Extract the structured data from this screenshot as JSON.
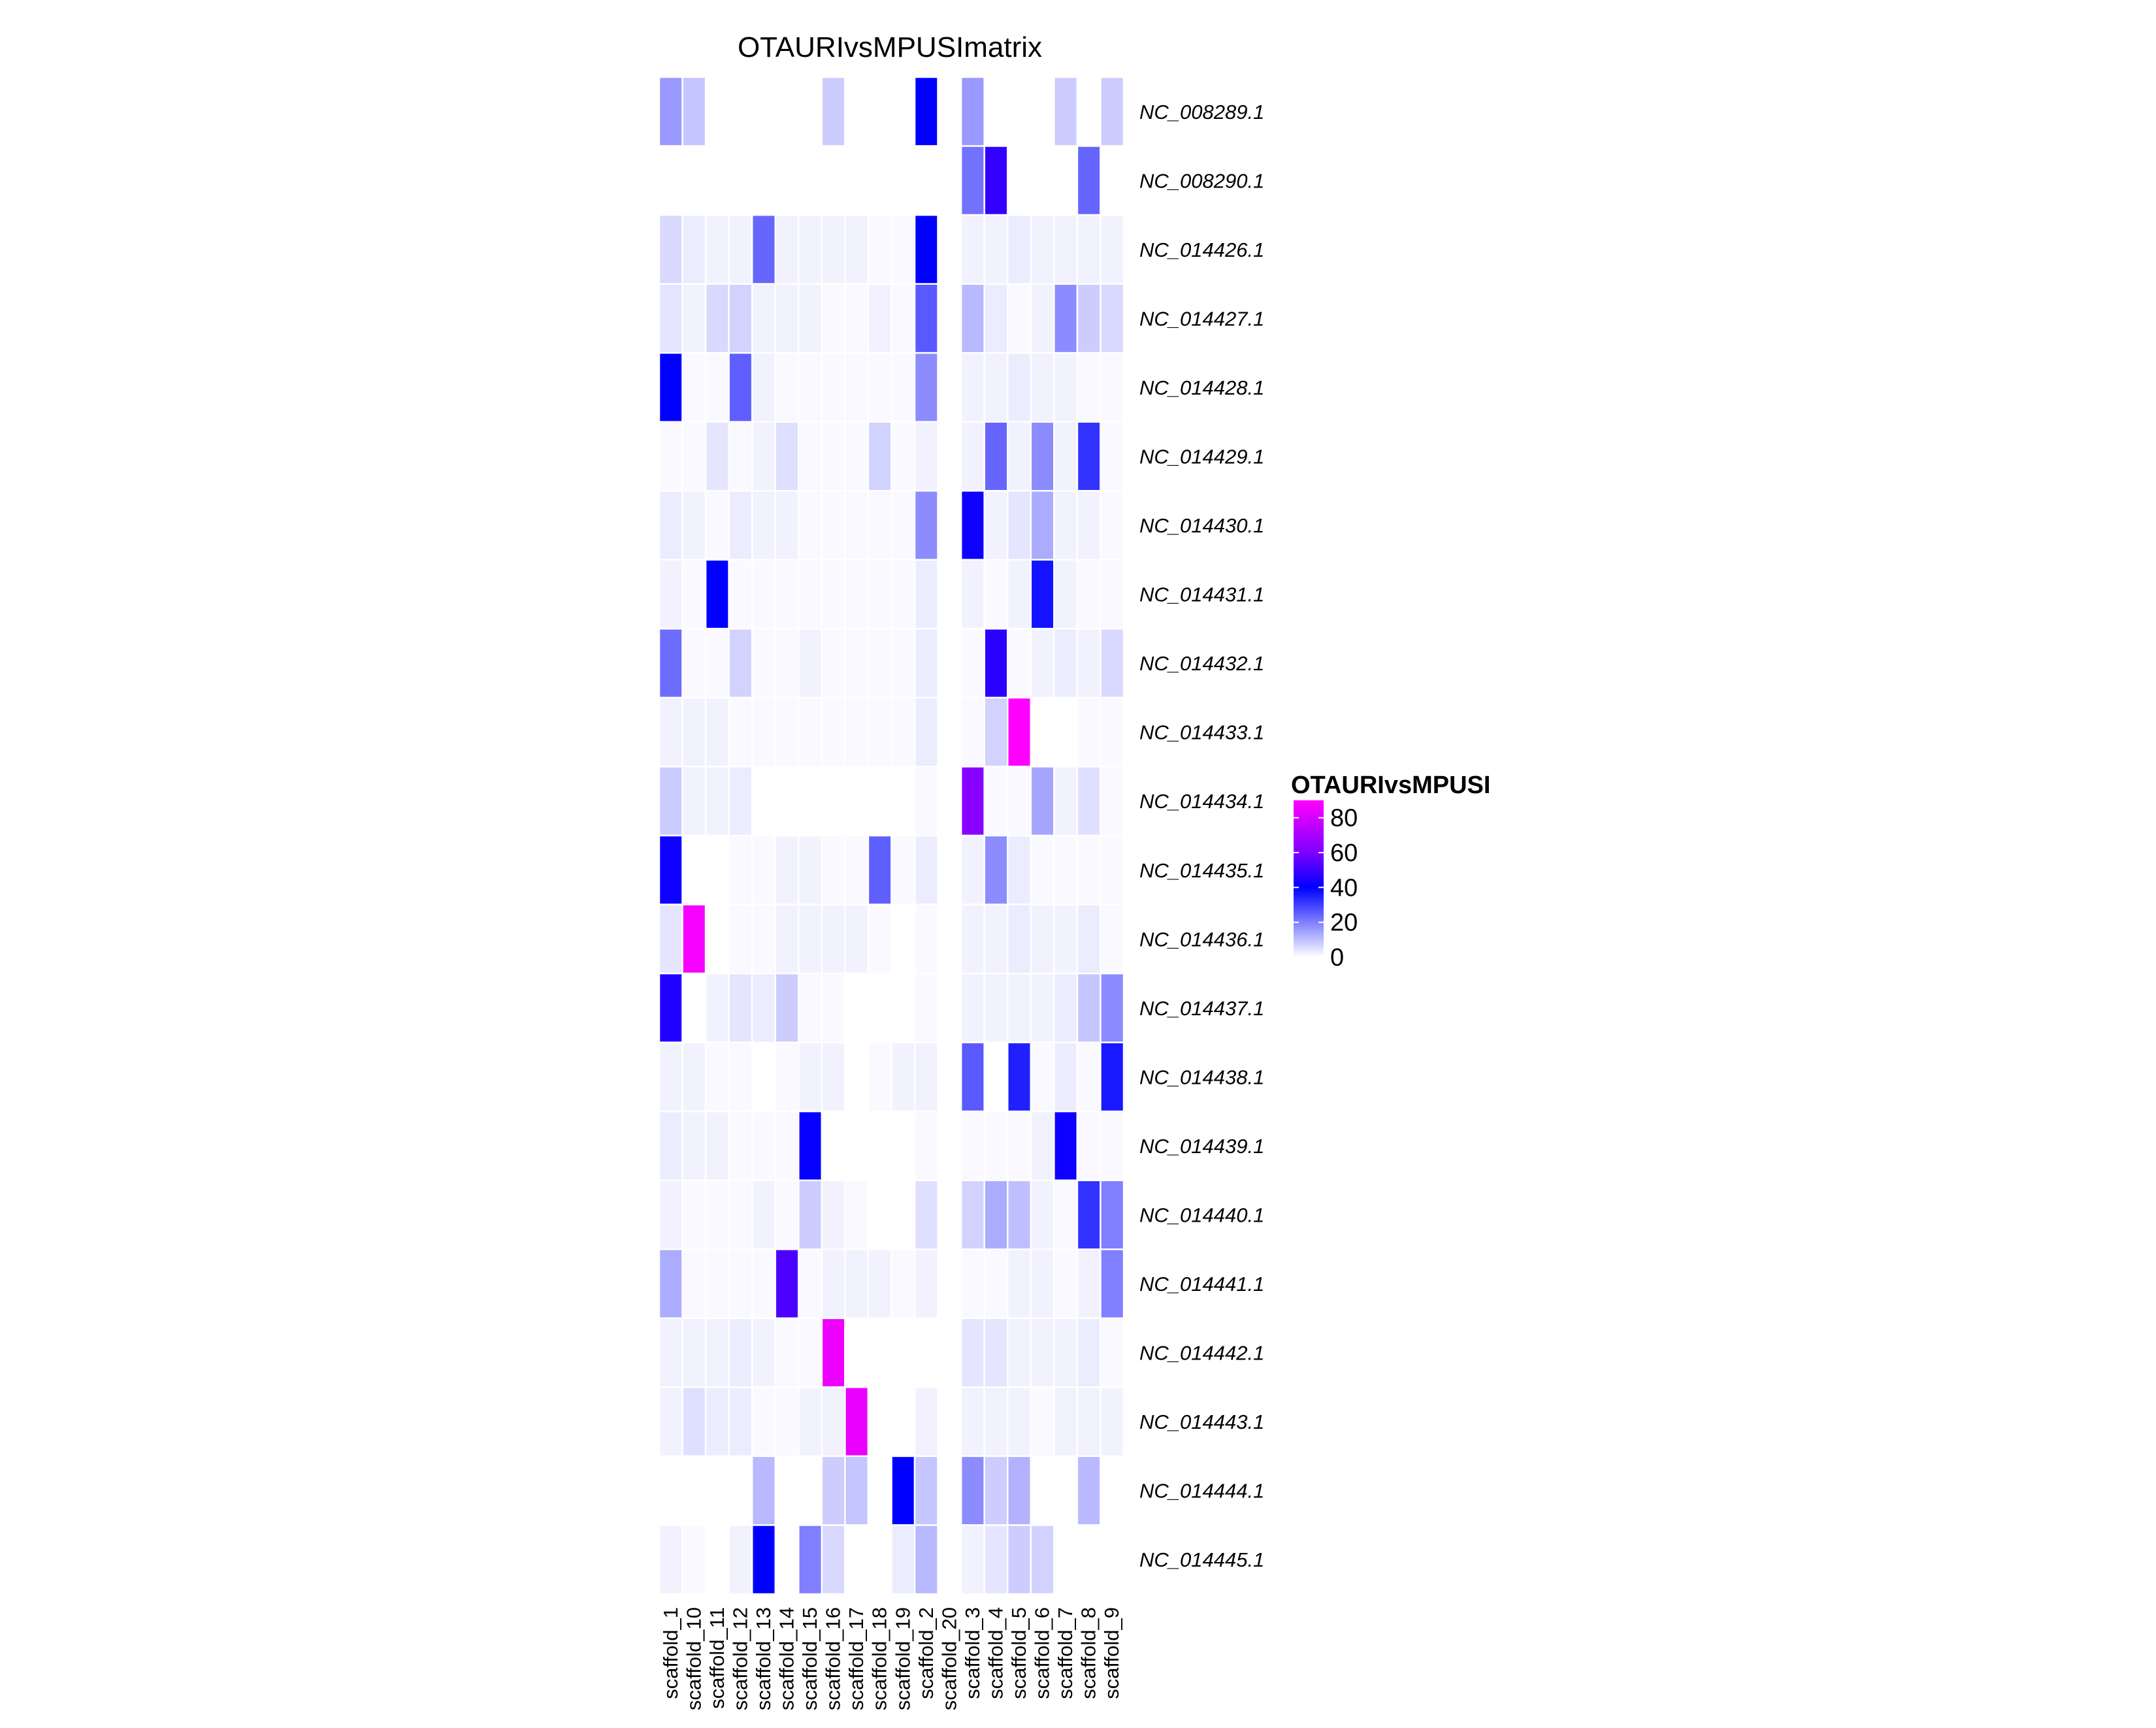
{
  "chart_data": {
    "type": "heatmap",
    "title": "OTAURIvsMPUSImatrix",
    "legend_title": "OTAURIvsMPUSI",
    "legend_ticks": [
      "80",
      "60",
      "40",
      "20",
      "0"
    ],
    "legend_tick_values": [
      80,
      60,
      40,
      20,
      0
    ],
    "legend_placement": "right",
    "color_scale": {
      "stops": [
        {
          "value": 0,
          "color": "#ffffff"
        },
        {
          "value": 20,
          "color": "#7f7fff"
        },
        {
          "value": 40,
          "color": "#0000ff"
        },
        {
          "value": 60,
          "color": "#7f00ff"
        },
        {
          "value": 90,
          "color": "#ff00ff"
        }
      ],
      "missing_color": "#ffffff"
    },
    "columns": [
      "scaffold_1",
      "scaffold_10",
      "scaffold_11",
      "scaffold_12",
      "scaffold_13",
      "scaffold_14",
      "scaffold_15",
      "scaffold_16",
      "scaffold_17",
      "scaffold_18",
      "scaffold_19",
      "scaffold_2",
      "scaffold_20",
      "scaffold_3",
      "scaffold_4",
      "scaffold_5",
      "scaffold_6",
      "scaffold_7",
      "scaffold_8",
      "scaffold_9"
    ],
    "rows": [
      "NC_008289.1",
      "NC_008290.1",
      "NC_014426.1",
      "NC_014427.1",
      "NC_014428.1",
      "NC_014429.1",
      "NC_014430.1",
      "NC_014431.1",
      "NC_014432.1",
      "NC_014433.1",
      "NC_014434.1",
      "NC_014435.1",
      "NC_014436.1",
      "NC_014437.1",
      "NC_014438.1",
      "NC_014439.1",
      "NC_014440.1",
      "NC_014441.1",
      "NC_014442.1",
      "NC_014443.1",
      "NC_014444.1",
      "NC_014445.1"
    ],
    "values": [
      [
        16,
        9,
        null,
        null,
        null,
        null,
        null,
        8,
        null,
        null,
        null,
        40,
        null,
        16,
        null,
        null,
        null,
        8,
        null,
        8
      ],
      [
        null,
        null,
        null,
        null,
        null,
        null,
        null,
        null,
        null,
        null,
        null,
        null,
        null,
        22,
        48,
        null,
        null,
        null,
        24,
        null
      ],
      [
        6,
        3,
        2,
        2,
        24,
        2,
        2,
        2,
        2,
        1,
        1,
        40,
        null,
        2,
        2,
        3,
        2,
        2,
        2,
        2
      ],
      [
        4,
        2,
        6,
        7,
        2,
        2,
        2,
        1,
        1,
        2,
        1,
        26,
        null,
        11,
        3,
        1,
        2,
        18,
        8,
        6
      ],
      [
        40,
        1,
        1,
        25,
        2,
        1,
        1,
        1,
        1,
        1,
        1,
        18,
        null,
        2,
        2,
        3,
        2,
        2,
        1,
        1
      ],
      [
        1,
        1,
        4,
        1,
        2,
        5,
        1,
        1,
        1,
        7,
        1,
        2,
        null,
        2,
        24,
        2,
        18,
        2,
        32,
        1
      ],
      [
        3,
        2,
        1,
        3,
        2,
        2,
        1,
        1,
        1,
        1,
        1,
        18,
        null,
        42,
        2,
        4,
        13,
        2,
        2,
        1
      ],
      [
        2,
        1,
        40,
        1,
        1,
        1,
        1,
        1,
        1,
        1,
        1,
        3,
        null,
        2,
        1,
        2,
        37,
        2,
        1,
        1
      ],
      [
        23,
        1,
        1,
        7,
        1,
        1,
        2,
        1,
        1,
        1,
        1,
        3,
        null,
        1,
        47,
        1,
        2,
        3,
        2,
        6
      ],
      [
        2,
        2,
        2,
        1,
        1,
        1,
        1,
        1,
        1,
        1,
        1,
        3,
        null,
        1,
        7,
        90,
        null,
        null,
        1,
        1
      ],
      [
        8,
        2,
        2,
        3,
        null,
        null,
        null,
        null,
        null,
        null,
        null,
        1,
        null,
        62,
        1,
        1,
        14,
        2,
        5,
        1
      ],
      [
        42,
        null,
        null,
        1,
        1,
        2,
        2,
        1,
        1,
        25,
        1,
        3,
        null,
        2,
        18,
        3,
        1,
        1,
        1,
        1
      ],
      [
        4,
        88,
        null,
        1,
        1,
        2,
        2,
        2,
        2,
        1,
        null,
        1,
        null,
        2,
        2,
        3,
        2,
        2,
        3,
        1
      ],
      [
        45,
        null,
        2,
        4,
        3,
        8,
        1,
        1,
        null,
        null,
        null,
        1,
        null,
        2,
        2,
        2,
        2,
        3,
        9,
        18
      ],
      [
        2,
        2,
        1,
        1,
        null,
        1,
        2,
        2,
        null,
        1,
        2,
        2,
        null,
        26,
        null,
        35,
        1,
        3,
        1,
        36
      ],
      [
        3,
        2,
        2,
        1,
        1,
        1,
        41,
        null,
        null,
        null,
        null,
        1,
        null,
        1,
        1,
        1,
        2,
        42,
        1,
        1
      ],
      [
        2,
        1,
        1,
        1,
        2,
        1,
        8,
        2,
        1,
        null,
        null,
        5,
        null,
        7,
        13,
        10,
        2,
        1,
        32,
        20
      ],
      [
        13,
        1,
        1,
        1,
        1,
        52,
        1,
        2,
        2,
        2,
        1,
        2,
        null,
        1,
        1,
        2,
        2,
        1,
        2,
        20
      ],
      [
        2,
        2,
        2,
        3,
        2,
        1,
        1,
        86,
        null,
        null,
        null,
        null,
        null,
        4,
        4,
        2,
        2,
        2,
        3,
        1
      ],
      [
        2,
        5,
        3,
        3,
        1,
        1,
        2,
        2,
        85,
        null,
        null,
        2,
        null,
        2,
        2,
        2,
        1,
        2,
        2,
        2
      ],
      [
        null,
        null,
        null,
        null,
        11,
        null,
        null,
        8,
        9,
        null,
        40,
        9,
        null,
        18,
        8,
        12,
        null,
        null,
        11,
        null
      ],
      [
        2,
        1,
        null,
        2,
        40,
        null,
        20,
        6,
        null,
        null,
        3,
        11,
        null,
        2,
        4,
        8,
        7,
        null,
        null,
        null
      ]
    ]
  }
}
